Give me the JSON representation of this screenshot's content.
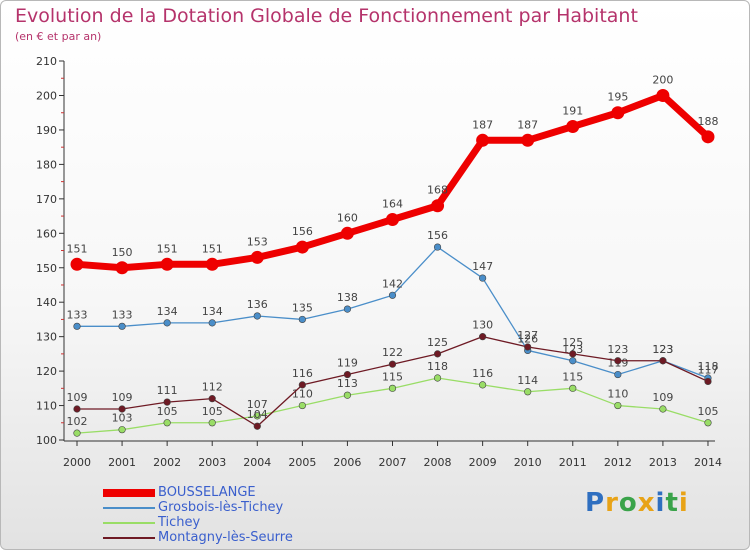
{
  "chart_data": {
    "type": "line",
    "title": "Evolution de la Dotation Globale de Fonctionnement par Habitant",
    "subtitle": "(en € et par an)",
    "xlabel": "",
    "ylabel": "",
    "categories": [
      "2000",
      "2001",
      "2002",
      "2003",
      "2004",
      "2005",
      "2006",
      "2007",
      "2008",
      "2009",
      "2010",
      "2011",
      "2012",
      "2013",
      "2014"
    ],
    "ylim": [
      100,
      210
    ],
    "yticks": [
      100,
      110,
      120,
      130,
      140,
      150,
      160,
      170,
      180,
      190,
      200,
      210
    ],
    "series": [
      {
        "name": "BOUSSELANGE",
        "color": "#ee0000",
        "values": [
          151,
          150,
          151,
          151,
          153,
          156,
          160,
          164,
          168,
          187,
          187,
          191,
          195,
          200,
          188
        ]
      },
      {
        "name": "Grosbois-lès-Tichey",
        "color": "#4a8ec9",
        "values": [
          133,
          133,
          134,
          134,
          136,
          135,
          138,
          142,
          156,
          147,
          126,
          123,
          119,
          123,
          118
        ]
      },
      {
        "name": "Tichey",
        "color": "#99dd66",
        "values": [
          102,
          103,
          105,
          105,
          107,
          110,
          113,
          115,
          118,
          116,
          114,
          115,
          110,
          109,
          105
        ]
      },
      {
        "name": "Montagny-lès-Seurre",
        "color": "#6e1a24",
        "values": [
          109,
          109,
          111,
          112,
          104,
          116,
          119,
          122,
          125,
          130,
          127,
          125,
          123,
          123,
          117
        ]
      }
    ]
  },
  "logo": {
    "p": "P",
    "r": "r",
    "o": "o",
    "x": "x",
    "i": "i",
    "t": "t",
    "i2": "i"
  }
}
